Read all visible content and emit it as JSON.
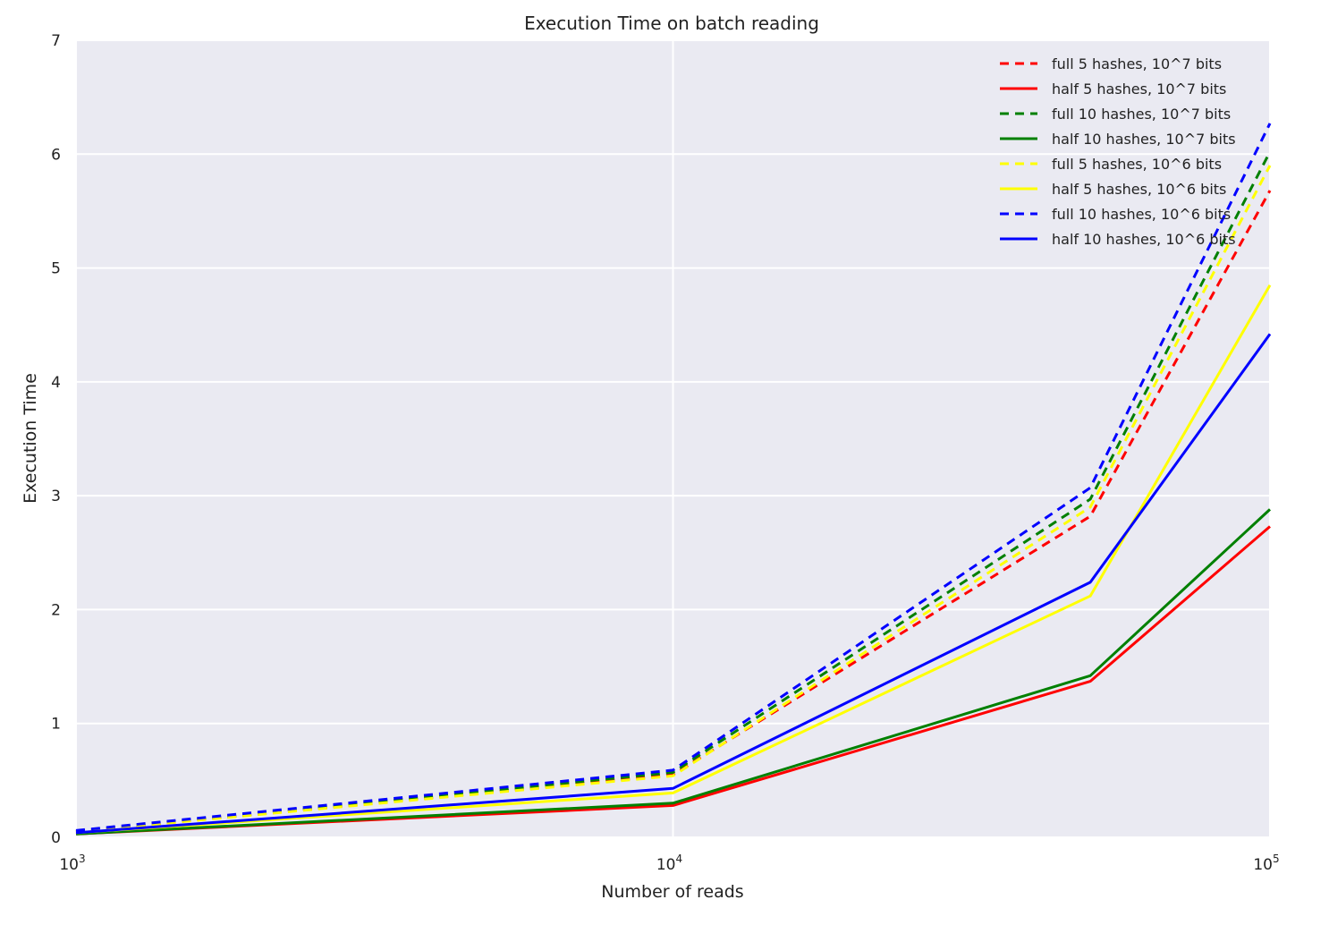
{
  "chart_data": {
    "type": "line",
    "title": "Execution Time on batch reading",
    "xlabel": "Number of reads",
    "ylabel": "Execution Time",
    "x_scale": "log",
    "xlim": [
      1000,
      100000
    ],
    "ylim": [
      0,
      7
    ],
    "x_ticks": [
      {
        "value": 1000,
        "base": "10",
        "exp": "3"
      },
      {
        "value": 10000,
        "base": "10",
        "exp": "4"
      },
      {
        "value": 100000,
        "base": "10",
        "exp": "5"
      }
    ],
    "y_ticks": [
      0,
      1,
      2,
      3,
      4,
      5,
      6,
      7
    ],
    "y_tick_labels": [
      "0",
      "1",
      "2",
      "3",
      "4",
      "5",
      "6",
      "7"
    ],
    "grid": true,
    "legend_position": "top-right",
    "x": [
      1000,
      10000,
      50000,
      100000
    ],
    "series": [
      {
        "name": "full 5 hashes, 10^7  bits",
        "color": "#ff0000",
        "style": "dashed",
        "values": [
          0.05,
          0.55,
          2.82,
          5.68
        ]
      },
      {
        "name": "half 5 hashes, 10^7  bits",
        "color": "#ff0000",
        "style": "solid",
        "values": [
          0.03,
          0.28,
          1.37,
          2.73
        ]
      },
      {
        "name": "full 10 hashes, 10^7  bits",
        "color": "#008000",
        "style": "dashed",
        "values": [
          0.05,
          0.57,
          2.97,
          6.02
        ]
      },
      {
        "name": "half 10 hashes, 10^7  bits",
        "color": "#008000",
        "style": "solid",
        "values": [
          0.03,
          0.3,
          1.42,
          2.88
        ]
      },
      {
        "name": "full 5 hashes, 10^6  bits",
        "color": "#ffff00",
        "style": "dashed",
        "values": [
          0.05,
          0.54,
          2.9,
          5.9
        ]
      },
      {
        "name": "half 5 hashes, 10^6  bits",
        "color": "#ffff00",
        "style": "solid",
        "values": [
          0.04,
          0.39,
          2.12,
          4.85
        ]
      },
      {
        "name": "full 10 hashes, 10^6  bits",
        "color": "#0000ff",
        "style": "dashed",
        "values": [
          0.06,
          0.59,
          3.07,
          6.27
        ]
      },
      {
        "name": "half 10 hashes, 10^6  bits",
        "color": "#0000ff",
        "style": "solid",
        "values": [
          0.04,
          0.43,
          2.24,
          4.42
        ]
      }
    ]
  }
}
